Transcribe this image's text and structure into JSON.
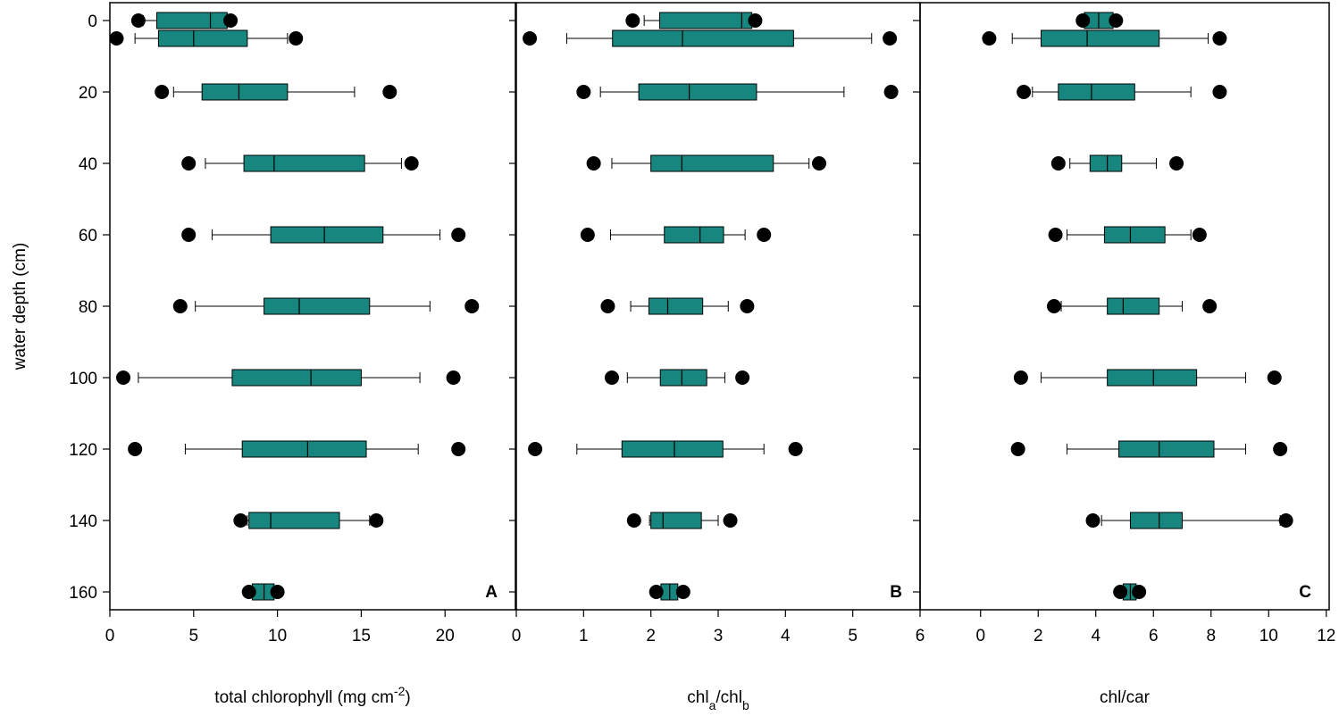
{
  "chart_data": [
    {
      "type": "box",
      "annotation": "A",
      "xlabel": [
        {
          "text": "total chlorophyll (mg cm"
        },
        {
          "text": "-2",
          "shift": "super"
        },
        {
          "text": ")"
        }
      ],
      "ylabel": "water depth (cm)",
      "xlim": [
        0,
        24.2
      ],
      "xticks": [
        0,
        5,
        10,
        15,
        20
      ],
      "ylim": [
        -5,
        165
      ],
      "y_inverted": true,
      "yticks": [
        0,
        20,
        40,
        60,
        80,
        100,
        120,
        140,
        160
      ],
      "color": "#17867f",
      "y": [
        0,
        5,
        20,
        40,
        60,
        80,
        100,
        120,
        140,
        160
      ],
      "boxes": [
        {
          "min": 2.0,
          "q1": 2.8,
          "median": 6.0,
          "q3": 7.0,
          "max": 7.1,
          "outliers": [
            1.7,
            7.2
          ]
        },
        {
          "min": 1.5,
          "q1": 2.9,
          "median": 5.0,
          "q3": 8.2,
          "max": 10.6,
          "outliers": [
            0.4,
            11.1
          ]
        },
        {
          "min": 3.8,
          "q1": 5.5,
          "median": 7.7,
          "q3": 10.6,
          "max": 14.6,
          "outliers": [
            3.1,
            16.7
          ]
        },
        {
          "min": 5.7,
          "q1": 8.0,
          "median": 9.8,
          "q3": 15.2,
          "max": 17.4,
          "outliers": [
            4.7,
            18.0
          ]
        },
        {
          "min": 6.1,
          "q1": 9.6,
          "median": 12.8,
          "q3": 16.3,
          "max": 19.7,
          "outliers": [
            4.7,
            20.8
          ]
        },
        {
          "min": 5.1,
          "q1": 9.2,
          "median": 11.3,
          "q3": 15.5,
          "max": 19.1,
          "outliers": [
            4.2,
            21.6
          ]
        },
        {
          "min": 1.7,
          "q1": 7.3,
          "median": 12.0,
          "q3": 15.0,
          "max": 18.5,
          "outliers": [
            0.8,
            20.5
          ]
        },
        {
          "min": 4.5,
          "q1": 7.9,
          "median": 11.8,
          "q3": 15.3,
          "max": 18.4,
          "outliers": [
            1.5,
            20.8
          ]
        },
        {
          "min": 8.2,
          "q1": 8.3,
          "median": 9.6,
          "q3": 13.7,
          "max": 15.5,
          "outliers": [
            7.8,
            15.9
          ]
        },
        {
          "min": 8.4,
          "q1": 8.5,
          "median": 9.2,
          "q3": 9.8,
          "max": 9.9,
          "outliers": [
            8.3,
            10.0
          ]
        }
      ]
    },
    {
      "type": "box",
      "annotation": "B",
      "xlabel": [
        {
          "text": "chl"
        },
        {
          "text": "a",
          "shift": "sub"
        },
        {
          "text": "/chl"
        },
        {
          "text": "b",
          "shift": "sub"
        }
      ],
      "xlim": [
        0,
        6
      ],
      "xticks": [
        0,
        1,
        2,
        3,
        4,
        5,
        6
      ],
      "ylim": [
        -5,
        165
      ],
      "y_inverted": true,
      "color": "#17867f",
      "y": [
        0,
        5,
        20,
        40,
        60,
        80,
        100,
        120,
        140,
        160
      ],
      "boxes": [
        {
          "min": 1.9,
          "q1": 2.13,
          "median": 3.35,
          "q3": 3.5,
          "max": 3.52,
          "outliers": [
            1.73,
            3.55
          ]
        },
        {
          "min": 0.75,
          "q1": 1.43,
          "median": 2.47,
          "q3": 4.12,
          "max": 5.28,
          "outliers": [
            0.2,
            5.55
          ]
        },
        {
          "min": 1.25,
          "q1": 1.82,
          "median": 2.57,
          "q3": 3.57,
          "max": 4.87,
          "outliers": [
            1.0,
            5.57
          ]
        },
        {
          "min": 1.42,
          "q1": 2.0,
          "median": 2.46,
          "q3": 3.82,
          "max": 4.35,
          "outliers": [
            1.15,
            4.5
          ]
        },
        {
          "min": 1.4,
          "q1": 2.2,
          "median": 2.73,
          "q3": 3.08,
          "max": 3.4,
          "outliers": [
            1.06,
            3.68
          ]
        },
        {
          "min": 1.7,
          "q1": 1.97,
          "median": 2.25,
          "q3": 2.77,
          "max": 3.15,
          "outliers": [
            1.36,
            3.43
          ]
        },
        {
          "min": 1.65,
          "q1": 2.14,
          "median": 2.46,
          "q3": 2.83,
          "max": 3.1,
          "outliers": [
            1.42,
            3.36
          ]
        },
        {
          "min": 0.9,
          "q1": 1.57,
          "median": 2.35,
          "q3": 3.07,
          "max": 3.68,
          "outliers": [
            0.28,
            4.15
          ]
        },
        {
          "min": 1.98,
          "q1": 2.0,
          "median": 2.18,
          "q3": 2.75,
          "max": 3.0,
          "outliers": [
            1.75,
            3.18
          ]
        },
        {
          "min": 2.12,
          "q1": 2.15,
          "median": 2.28,
          "q3": 2.4,
          "max": 2.45,
          "outliers": [
            2.08,
            2.48
          ]
        }
      ]
    },
    {
      "type": "box",
      "annotation": "C",
      "xlabel": [
        {
          "text": "chl/car"
        }
      ],
      "xlim": [
        -2.1,
        12.1
      ],
      "xticks": [
        0,
        2,
        4,
        6,
        8,
        10,
        12
      ],
      "ylim": [
        -5,
        165
      ],
      "y_inverted": true,
      "color": "#17867f",
      "y": [
        0,
        5,
        20,
        40,
        60,
        80,
        100,
        120,
        140,
        160
      ],
      "boxes": [
        {
          "min": 3.58,
          "q1": 3.6,
          "median": 4.1,
          "q3": 4.6,
          "max": 4.65,
          "outliers": [
            3.55,
            4.7
          ]
        },
        {
          "min": 1.1,
          "q1": 2.1,
          "median": 3.7,
          "q3": 6.2,
          "max": 7.9,
          "outliers": [
            0.3,
            8.3
          ]
        },
        {
          "min": 1.8,
          "q1": 2.7,
          "median": 3.85,
          "q3": 5.35,
          "max": 7.3,
          "outliers": [
            1.5,
            8.3
          ]
        },
        {
          "min": 3.1,
          "q1": 3.8,
          "median": 4.4,
          "q3": 4.9,
          "max": 6.1,
          "outliers": [
            2.7,
            6.8
          ]
        },
        {
          "min": 3.0,
          "q1": 4.3,
          "median": 5.2,
          "q3": 6.4,
          "max": 7.3,
          "outliers": [
            2.6,
            7.6
          ]
        },
        {
          "min": 2.8,
          "q1": 4.4,
          "median": 4.95,
          "q3": 6.2,
          "max": 7.0,
          "outliers": [
            2.55,
            7.95
          ]
        },
        {
          "min": 2.1,
          "q1": 4.4,
          "median": 6.0,
          "q3": 7.5,
          "max": 9.2,
          "outliers": [
            1.4,
            10.2
          ]
        },
        {
          "min": 3.0,
          "q1": 4.8,
          "median": 6.2,
          "q3": 8.1,
          "max": 9.2,
          "outliers": [
            1.3,
            10.4
          ]
        },
        {
          "min": 4.2,
          "q1": 5.2,
          "median": 6.2,
          "q3": 7.0,
          "max": 10.4,
          "outliers": [
            3.9,
            10.6
          ]
        },
        {
          "min": 4.9,
          "q1": 4.95,
          "median": 5.2,
          "q3": 5.4,
          "max": 5.45,
          "outliers": [
            4.85,
            5.5
          ]
        }
      ]
    }
  ]
}
